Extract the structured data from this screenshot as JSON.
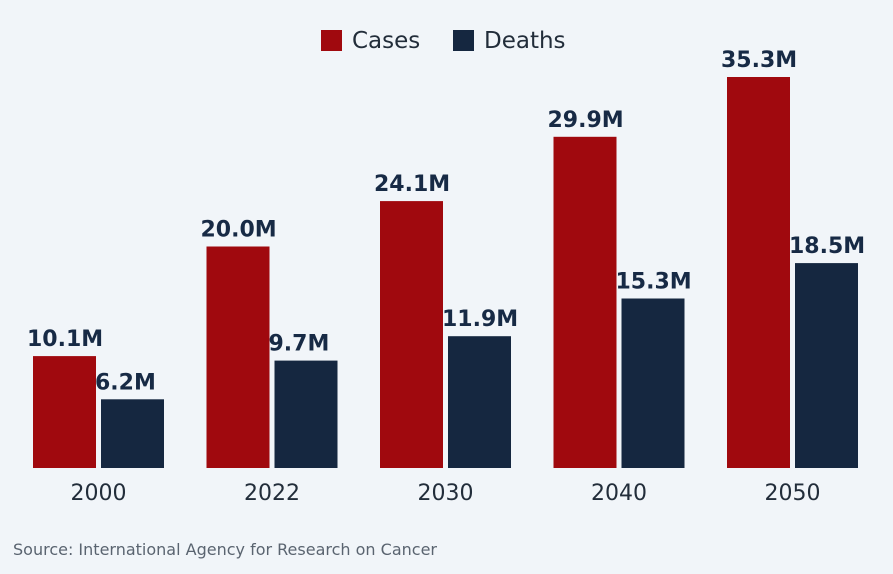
{
  "chart_data": {
    "type": "bar",
    "categories": [
      "2000",
      "2022",
      "2030",
      "2040",
      "2050"
    ],
    "series": [
      {
        "name": "Cases",
        "color": "#a0090e",
        "values": [
          10.1,
          20.0,
          24.1,
          29.9,
          35.3
        ],
        "labels": [
          "10.1M",
          "20.0M",
          "24.1M",
          "29.9M",
          "35.3M"
        ]
      },
      {
        "name": "Deaths",
        "color": "#152740",
        "values": [
          6.2,
          9.7,
          11.9,
          15.3,
          18.5
        ],
        "labels": [
          "6.2M",
          "9.7M",
          "11.9M",
          "15.3M",
          "18.5M"
        ]
      }
    ],
    "ylim": [
      0,
      35.3
    ],
    "grid": false,
    "legend": "top-center",
    "source": "Source: International Agency for Research on Cancer"
  }
}
